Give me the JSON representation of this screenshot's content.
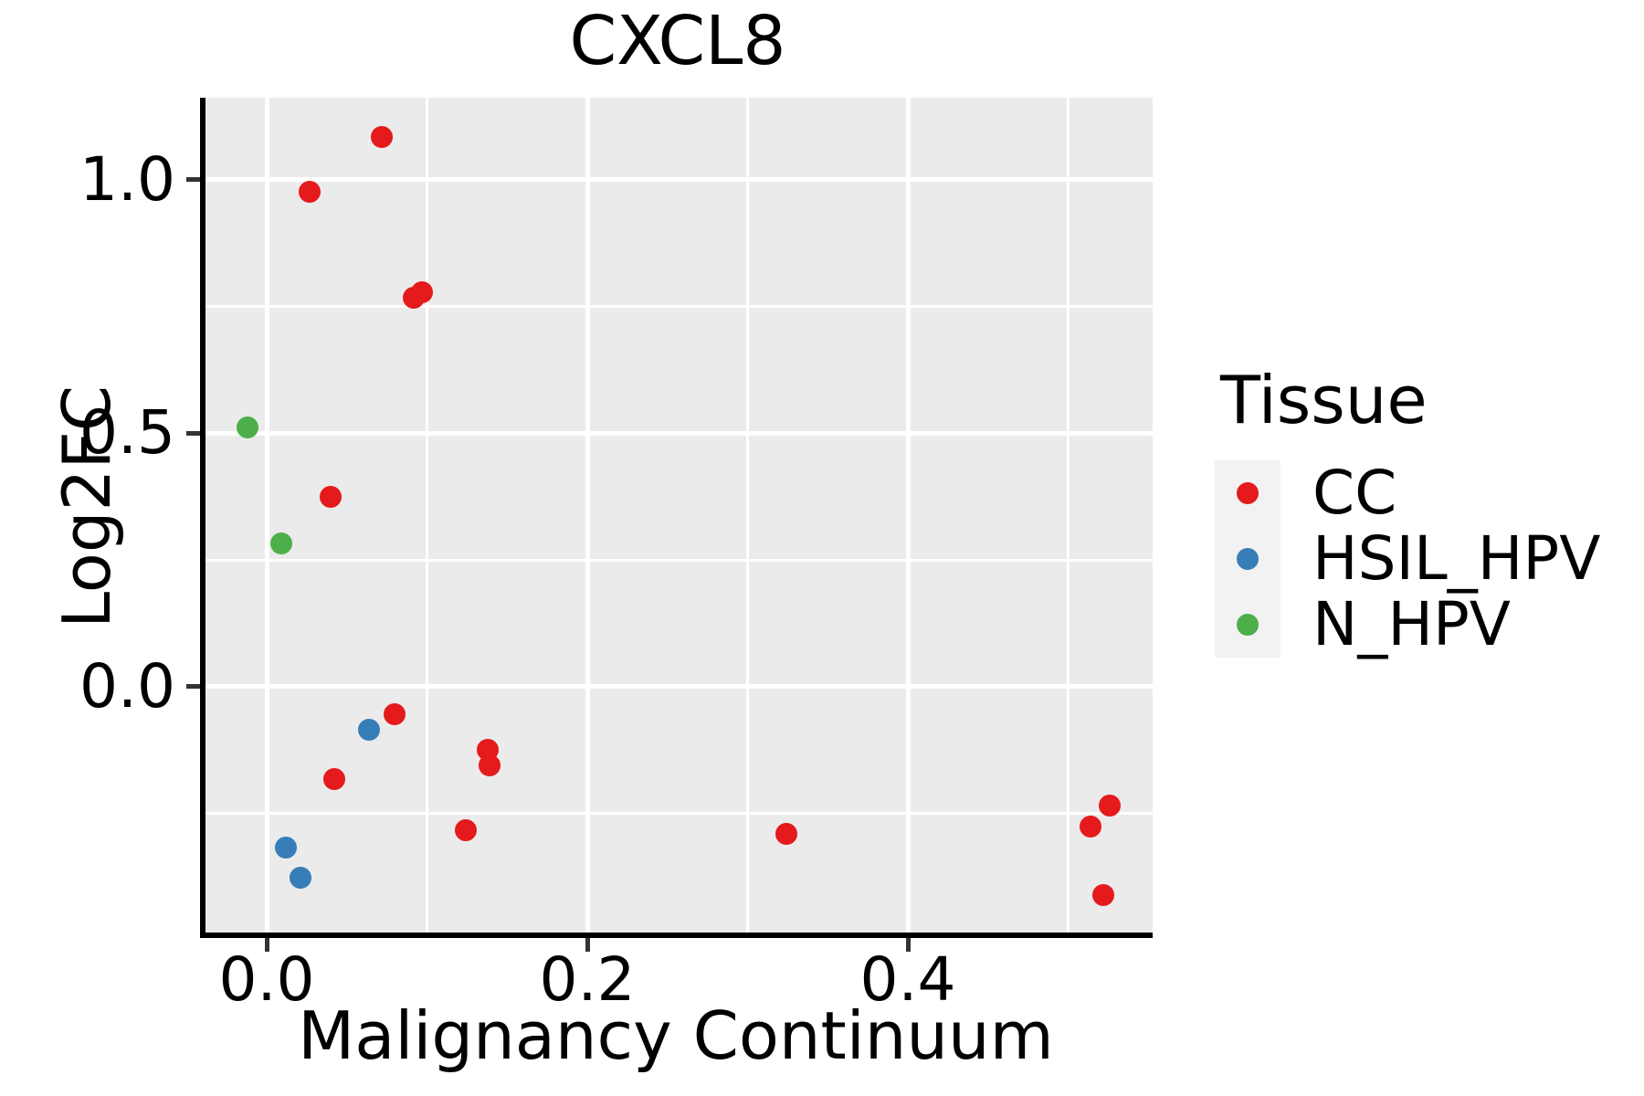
{
  "chart_data": {
    "type": "scatter",
    "title": "CXCL8",
    "xlabel": "Malignancy Continuum",
    "ylabel": "Log2FC",
    "xlim": [
      -0.0399,
      0.5527
    ],
    "ylim": [
      -0.4847,
      1.162
    ],
    "x_major_ticks": [
      0.0,
      0.2,
      0.4
    ],
    "x_major_tick_labels": [
      "0.0",
      "0.2",
      "0.4"
    ],
    "x_minor_ticks": [
      0.1,
      0.3,
      0.5
    ],
    "y_major_ticks": [
      0.0,
      0.5,
      1.0
    ],
    "y_major_tick_labels": [
      "0.0",
      "0.5",
      "1.0"
    ],
    "y_minor_ticks": [
      -0.25,
      0.25,
      0.75
    ],
    "grid": "on",
    "panel_color": "#ebebeb",
    "gridline_color": "#ffffff",
    "legend_position": "right",
    "legend_title": "Tissue",
    "series": [
      {
        "name": "CC",
        "color": "#e41a1c",
        "points": [
          [
            0.072,
            1.084
          ],
          [
            0.027,
            0.977
          ],
          [
            0.092,
            0.767
          ],
          [
            0.097,
            0.779
          ],
          [
            0.04,
            0.375
          ],
          [
            0.08,
            -0.054
          ],
          [
            0.042,
            -0.182
          ],
          [
            0.138,
            -0.124
          ],
          [
            0.139,
            -0.155
          ],
          [
            0.124,
            -0.283
          ],
          [
            0.324,
            -0.29
          ],
          [
            0.526,
            -0.235
          ],
          [
            0.514,
            -0.275
          ],
          [
            0.522,
            -0.41
          ]
        ]
      },
      {
        "name": "HSIL_HPV",
        "color": "#377eb8",
        "points": [
          [
            0.064,
            -0.085
          ],
          [
            0.012,
            -0.317
          ],
          [
            0.021,
            -0.376
          ]
        ]
      },
      {
        "name": "N_HPV",
        "color": "#4daf4a",
        "points": [
          [
            -0.012,
            0.511
          ],
          [
            0.009,
            0.283
          ]
        ]
      }
    ]
  }
}
